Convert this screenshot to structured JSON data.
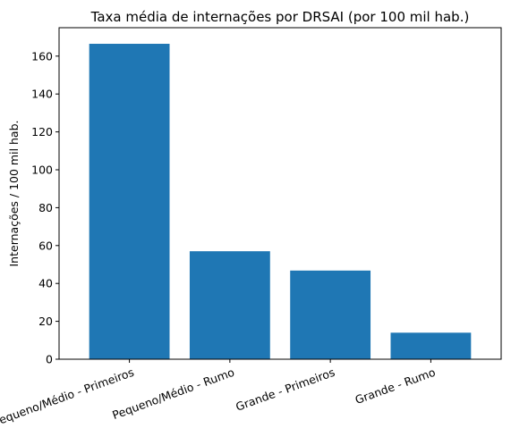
{
  "chart_data": {
    "type": "bar",
    "title": "Taxa média de internações por DRSAI (por 100 mil hab.)",
    "xlabel": "",
    "ylabel": "Internações / 100 mil hab.",
    "categories": [
      "Pequeno/Médio - Primeiros",
      "Pequeno/Médio - Rumo",
      "Grande - Primeiros",
      "Grande - Rumo"
    ],
    "values": [
      166.5,
      57,
      46.8,
      14
    ],
    "ylim": [
      0,
      175
    ],
    "yticks": [
      0,
      20,
      40,
      60,
      80,
      100,
      120,
      140,
      160
    ],
    "bar_color": "#1f77b4",
    "grid": false,
    "legend": "none"
  }
}
